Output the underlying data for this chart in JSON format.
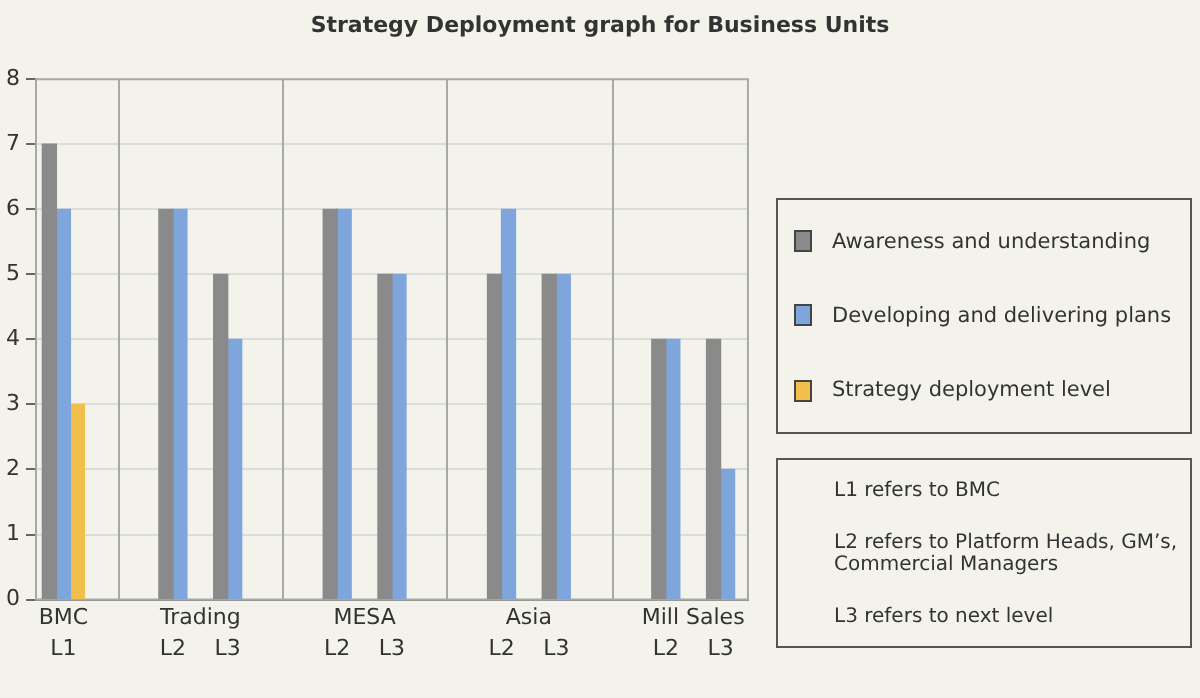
{
  "chart_data": {
    "type": "bar",
    "title": "Strategy Deployment graph for Business Units",
    "categories": [
      "L1",
      null,
      "L2",
      "L3",
      null,
      "L2",
      "L3",
      null,
      "L2",
      "L3",
      null,
      "L2",
      "L3"
    ],
    "series": [
      {
        "name": "Awareness and understanding",
        "color": "#8a8a8a",
        "values": [
          7,
          null,
          6,
          5,
          null,
          6,
          5,
          null,
          5,
          5,
          null,
          4,
          4
        ]
      },
      {
        "name": "Developing and delivering plans",
        "color": "#7ea6dc",
        "values": [
          6,
          null,
          6,
          4,
          null,
          6,
          5,
          null,
          6,
          5,
          null,
          4,
          2
        ]
      },
      {
        "name": "Strategy deployment level",
        "color": "#f2c04a",
        "values": [
          3,
          null,
          null,
          null,
          null,
          null,
          null,
          null,
          null,
          null,
          null,
          null,
          null
        ]
      }
    ],
    "ylim": [
      0,
      8
    ],
    "yticks": [
      0,
      1,
      2,
      3,
      4,
      5,
      6,
      7,
      8
    ],
    "grid": true,
    "legend": "right",
    "annotations": [
      "BMC",
      "Trading",
      "MESA",
      "Asia",
      "Mill Sales",
      "L1 refers to BMC",
      "L2 refers to Platform Heads, GM’s, Commercial Managers",
      "L3 refers to next level"
    ]
  }
}
